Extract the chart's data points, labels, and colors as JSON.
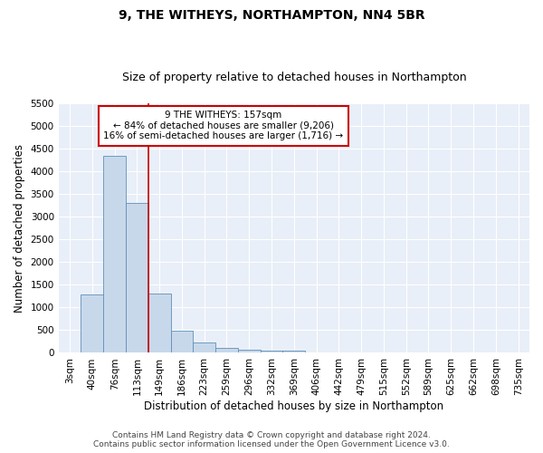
{
  "title1": "9, THE WITHEYS, NORTHAMPTON, NN4 5BR",
  "title2": "Size of property relative to detached houses in Northampton",
  "xlabel": "Distribution of detached houses by size in Northampton",
  "ylabel": "Number of detached properties",
  "annotation_line1": "9 THE WITHEYS: 157sqm",
  "annotation_line2": "← 84% of detached houses are smaller (9,206)",
  "annotation_line3": "16% of semi-detached houses are larger (1,716) →",
  "footer1": "Contains HM Land Registry data © Crown copyright and database right 2024.",
  "footer2": "Contains public sector information licensed under the Open Government Licence v3.0.",
  "categories": [
    "3sqm",
    "40sqm",
    "76sqm",
    "113sqm",
    "149sqm",
    "186sqm",
    "223sqm",
    "259sqm",
    "296sqm",
    "332sqm",
    "369sqm",
    "406sqm",
    "442sqm",
    "479sqm",
    "515sqm",
    "552sqm",
    "589sqm",
    "625sqm",
    "662sqm",
    "698sqm",
    "735sqm"
  ],
  "values": [
    0,
    1280,
    4350,
    3300,
    1300,
    480,
    230,
    100,
    70,
    50,
    50,
    0,
    0,
    0,
    0,
    0,
    0,
    0,
    0,
    0,
    0
  ],
  "bar_color": "#c8d8eb",
  "bar_edge_color": "#6090b8",
  "ylim": [
    0,
    5500
  ],
  "yticks": [
    0,
    500,
    1000,
    1500,
    2000,
    2500,
    3000,
    3500,
    4000,
    4500,
    5000,
    5500
  ],
  "bg_color": "#e8eff8",
  "grid_color": "#ffffff",
  "red_line_color": "#cc0000",
  "annotation_box_color": "#ffffff",
  "annotation_border_color": "#cc0000",
  "title1_fontsize": 10,
  "title2_fontsize": 9,
  "tick_fontsize": 7.5,
  "ylabel_fontsize": 8.5,
  "xlabel_fontsize": 8.5,
  "annotation_fontsize": 7.5,
  "footer_fontsize": 6.5,
  "red_line_xindex": 3.5
}
